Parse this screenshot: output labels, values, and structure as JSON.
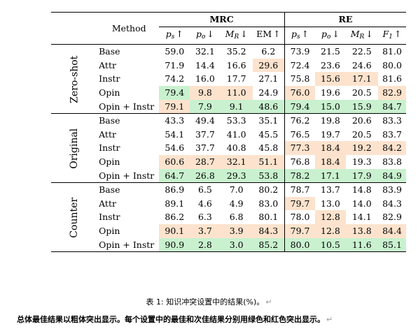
{
  "headers": {
    "method": "Method",
    "mrc": "MRC",
    "re": "RE",
    "metrics": [
      {
        "sym": "p",
        "sub": "s",
        "arrow": "↑"
      },
      {
        "sym": "p",
        "sub": "o",
        "arrow": "↓"
      },
      {
        "sym": "M",
        "sub": "R",
        "arrow": "↓"
      },
      {
        "sym": "EM",
        "sub": "",
        "arrow": "↑"
      },
      {
        "sym": "p",
        "sub": "s",
        "arrow": "↑"
      },
      {
        "sym": "p",
        "sub": "o",
        "arrow": "↓"
      },
      {
        "sym": "M",
        "sub": "R",
        "arrow": "↓"
      },
      {
        "sym": "F",
        "sub": "1",
        "arrow": "↑"
      }
    ]
  },
  "groups": [
    {
      "name": "Zero-shot",
      "rows": [
        {
          "method": "Base",
          "values": [
            "59.0",
            "32.1",
            "35.2",
            "6.2",
            "73.9",
            "21.5",
            "22.5",
            "81.0"
          ],
          "hl": [
            "",
            "",
            "",
            "",
            "",
            "",
            "",
            ""
          ]
        },
        {
          "method": "Attr",
          "values": [
            "71.9",
            "14.4",
            "16.6",
            "29.6",
            "72.4",
            "23.6",
            "24.6",
            "80.0"
          ],
          "hl": [
            "",
            "",
            "",
            "r",
            "",
            "",
            "",
            ""
          ]
        },
        {
          "method": "Instr",
          "values": [
            "74.2",
            "16.0",
            "17.7",
            "27.1",
            "75.8",
            "15.6",
            "17.1",
            "81.6"
          ],
          "hl": [
            "",
            "",
            "",
            "",
            "",
            "r",
            "r",
            ""
          ]
        },
        {
          "method": "Opin",
          "values": [
            "79.4",
            "9.8",
            "11.0",
            "24.9",
            "76.0",
            "19.6",
            "20.5",
            "82.9"
          ],
          "hl": [
            "g",
            "r",
            "r",
            "",
            "r",
            "",
            "",
            "r"
          ]
        },
        {
          "method": "Opin + Instr",
          "values": [
            "79.1",
            "7.9",
            "9.1",
            "48.6",
            "79.4",
            "15.0",
            "15.9",
            "84.7"
          ],
          "hl": [
            "r",
            "g",
            "g",
            "g",
            "g",
            "g",
            "g",
            "g"
          ]
        }
      ]
    },
    {
      "name": "Original",
      "rows": [
        {
          "method": "Base",
          "values": [
            "43.3",
            "49.4",
            "53.3",
            "35.1",
            "76.2",
            "19.8",
            "20.6",
            "83.3"
          ],
          "hl": [
            "",
            "",
            "",
            "",
            "",
            "",
            "",
            ""
          ]
        },
        {
          "method": "Attr",
          "values": [
            "54.1",
            "37.7",
            "41.0",
            "45.5",
            "76.5",
            "19.7",
            "20.5",
            "83.7"
          ],
          "hl": [
            "",
            "",
            "",
            "",
            "",
            "",
            "",
            ""
          ]
        },
        {
          "method": "Instr",
          "values": [
            "54.6",
            "37.7",
            "40.8",
            "45.8",
            "77.3",
            "18.4",
            "19.2",
            "84.2"
          ],
          "hl": [
            "",
            "",
            "",
            "",
            "r",
            "r",
            "r",
            "r"
          ]
        },
        {
          "method": "Opin",
          "values": [
            "60.6",
            "28.7",
            "32.1",
            "51.1",
            "76.8",
            "18.4",
            "19.3",
            "83.8"
          ],
          "hl": [
            "r",
            "r",
            "r",
            "r",
            "",
            "r",
            "",
            ""
          ]
        },
        {
          "method": "Opin + Instr",
          "values": [
            "64.7",
            "26.8",
            "29.3",
            "53.8",
            "78.2",
            "17.1",
            "17.9",
            "84.9"
          ],
          "hl": [
            "g",
            "g",
            "g",
            "g",
            "g",
            "g",
            "g",
            "g"
          ]
        }
      ]
    },
    {
      "name": "Counter",
      "rows": [
        {
          "method": "Base",
          "values": [
            "86.9",
            "6.5",
            "7.0",
            "80.2",
            "78.7",
            "13.7",
            "14.8",
            "83.9"
          ],
          "hl": [
            "",
            "",
            "",
            "",
            "",
            "",
            "",
            ""
          ]
        },
        {
          "method": "Attr",
          "values": [
            "89.1",
            "4.6",
            "4.9",
            "83.0",
            "79.7",
            "13.0",
            "14.0",
            "84.3"
          ],
          "hl": [
            "",
            "",
            "",
            "",
            "r",
            "",
            "",
            ""
          ]
        },
        {
          "method": "Instr",
          "values": [
            "86.2",
            "6.3",
            "6.8",
            "80.1",
            "78.0",
            "12.8",
            "14.1",
            "82.9"
          ],
          "hl": [
            "",
            "",
            "",
            "",
            "",
            "r",
            "",
            ""
          ]
        },
        {
          "method": "Opin",
          "values": [
            "90.1",
            "3.7",
            "3.9",
            "84.3",
            "79.7",
            "12.8",
            "13.8",
            "84.4"
          ],
          "hl": [
            "r",
            "r",
            "r",
            "r",
            "r",
            "r",
            "r",
            "r"
          ]
        },
        {
          "method": "Opin + Instr",
          "values": [
            "90.9",
            "2.8",
            "3.0",
            "85.2",
            "80.0",
            "10.5",
            "11.6",
            "85.1"
          ],
          "hl": [
            "g",
            "g",
            "g",
            "g",
            "g",
            "g",
            "g",
            "g"
          ],
          "bold": true
        }
      ]
    }
  ],
  "caption": "表 1: 知识冲突设置中的结果(%)。",
  "note": "总体最佳结果以粗体突出显示。每个设置中的最佳和次佳结果分别用绿色和红色突出显示。",
  "return_mark": "↵",
  "colors": {
    "best": "#c9f1cf",
    "second": "#fde3cd"
  }
}
